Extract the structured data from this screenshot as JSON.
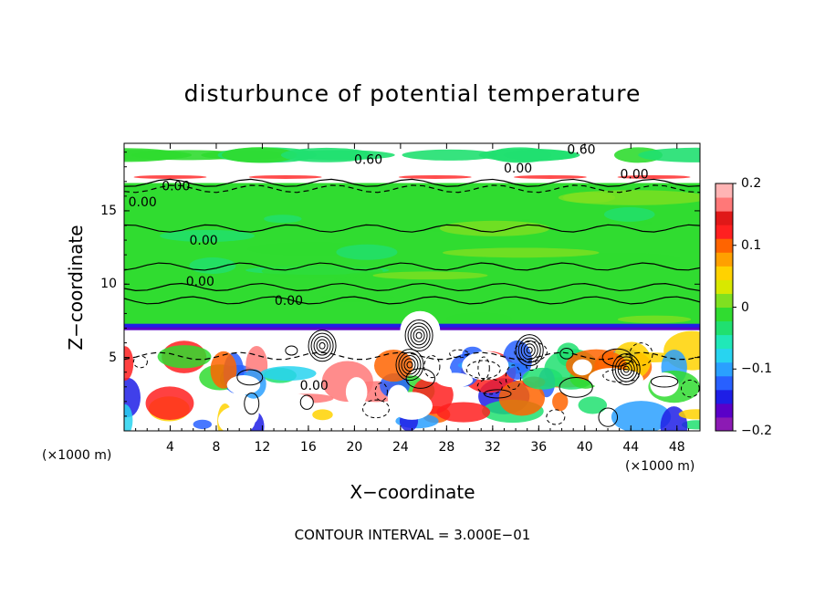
{
  "chart_data": {
    "type": "heatmap",
    "title": "disturbunce of potential temperature",
    "xlabel": "X−coordinate",
    "ylabel": "Z−coordinate",
    "x_unit": "(×1000 m)",
    "footnote": "CONTOUR INTERVAL = 3.000E−01",
    "x_ticks": [
      4,
      8,
      12,
      16,
      20,
      24,
      28,
      32,
      36,
      40,
      44,
      48
    ],
    "x_tick_labels": [
      "4",
      "8",
      "12",
      "16",
      "20",
      "24",
      "28",
      "32",
      "36",
      "40",
      "44",
      "48"
    ],
    "xlim": [
      0,
      50
    ],
    "y_ticks": [
      5,
      10,
      15
    ],
    "y_tick_labels": [
      "5",
      "10",
      "15"
    ],
    "ylim": [
      0,
      19.6
    ],
    "colorbar": {
      "range": [
        -0.2,
        0.2
      ],
      "ticks": [
        0.2,
        0.1,
        0,
        -0.1,
        -0.2
      ],
      "tick_labels": [
        "0.2",
        "0.1",
        "0",
        "−0.1",
        "−0.2"
      ],
      "colors": [
        "#8c1ab4",
        "#5a00c8",
        "#1e1ee6",
        "#2860ff",
        "#2aa0ff",
        "#28d4f0",
        "#20e8b8",
        "#20e070",
        "#30dc30",
        "#80e020",
        "#d8e800",
        "#ffd200",
        "#ffa000",
        "#ff6400",
        "#ff2020",
        "#e01818",
        "#ff7878",
        "#ffb4b4"
      ]
    },
    "contour_labels": [
      "0.60",
      "0.00",
      "0.00",
      "0.60",
      "0.00",
      "0.00",
      "0.00",
      "0.00",
      "0.00",
      "0.00"
    ],
    "contour_interval": 0.3
  }
}
